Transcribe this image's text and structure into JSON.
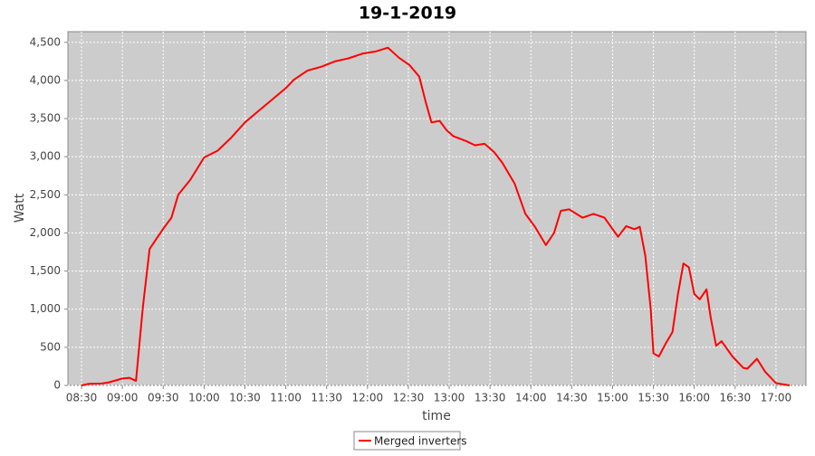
{
  "chart_data": {
    "type": "line",
    "title": "19-1-2019",
    "x_label": "time",
    "y_label": "Watt",
    "x": [
      "08:30",
      "08:35",
      "08:45",
      "08:50",
      "09:00",
      "09:05",
      "09:10",
      "09:15",
      "09:20",
      "09:26",
      "09:31",
      "09:36",
      "09:41",
      "09:50",
      "10:00",
      "10:10",
      "10:20",
      "10:30",
      "10:40",
      "10:50",
      "11:00",
      "11:06",
      "11:16",
      "11:26",
      "11:36",
      "11:46",
      "11:56",
      "12:06",
      "12:15",
      "12:23",
      "12:31",
      "12:38",
      "12:43",
      "12:47",
      "12:53",
      "12:58",
      "13:03",
      "13:13",
      "13:19",
      "13:26",
      "13:33",
      "13:39",
      "13:48",
      "13:56",
      "14:03",
      "14:11",
      "14:17",
      "14:22",
      "14:28",
      "14:38",
      "14:46",
      "14:54",
      "15:04",
      "15:10",
      "15:16",
      "15:20",
      "15:24",
      "15:28",
      "15:30",
      "15:34",
      "15:39",
      "15:44",
      "15:48",
      "15:52",
      "15:56",
      "16:00",
      "16:04",
      "16:09",
      "16:12",
      "16:16",
      "16:20",
      "16:28",
      "16:36",
      "16:39",
      "16:46",
      "16:52",
      "17:00",
      "17:10"
    ],
    "series": [
      {
        "name": "Merged inverters",
        "color": "#ff0000",
        "values": [
          0,
          20,
          25,
          40,
          90,
          100,
          60,
          1020,
          1790,
          1950,
          2080,
          2200,
          2500,
          2700,
          2990,
          3080,
          3250,
          3450,
          3600,
          3750,
          3900,
          4010,
          4130,
          4180,
          4250,
          4290,
          4350,
          4380,
          4430,
          4300,
          4200,
          4050,
          3700,
          3450,
          3470,
          3350,
          3270,
          3200,
          3150,
          3170,
          3060,
          2920,
          2650,
          2250,
          2080,
          1840,
          2000,
          2290,
          2310,
          2200,
          2250,
          2200,
          1950,
          2090,
          2050,
          2080,
          1700,
          1000,
          420,
          380,
          550,
          700,
          1200,
          1600,
          1550,
          1200,
          1130,
          1260,
          900,
          520,
          580,
          380,
          230,
          220,
          350,
          180,
          30,
          0
        ]
      }
    ],
    "xlim": [
      "08:20",
      "17:22"
    ],
    "xticks": [
      "08:30",
      "09:00",
      "09:30",
      "10:00",
      "10:30",
      "11:00",
      "11:30",
      "12:00",
      "12:30",
      "13:00",
      "13:30",
      "14:00",
      "14:30",
      "15:00",
      "15:30",
      "16:00",
      "16:30",
      "17:00"
    ],
    "ylim": [
      0,
      4640
    ],
    "yticks": [
      0,
      500,
      {
        "value": 1000,
        "label": "1,000"
      },
      {
        "value": 1500,
        "label": "1,500"
      },
      {
        "value": 2000,
        "label": "2,000"
      },
      {
        "value": 2500,
        "label": "2,500"
      },
      {
        "value": 3000,
        "label": "3,000"
      },
      {
        "value": 3500,
        "label": "3,500"
      },
      {
        "value": 4000,
        "label": "4,000"
      },
      {
        "value": 4500,
        "label": "4,500"
      }
    ],
    "grid": true,
    "legend": "bottom"
  }
}
